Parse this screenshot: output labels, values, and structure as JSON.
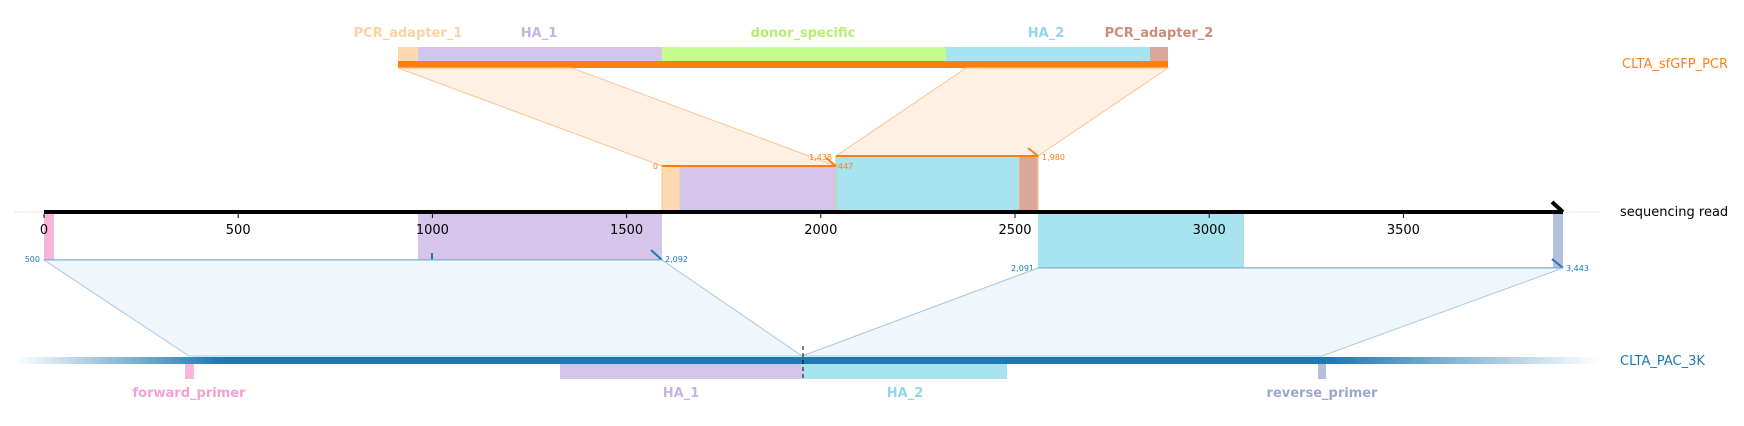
{
  "top_feature_labels": {
    "pcr_adapter_1": "PCR_adapter_1",
    "ha_1": "HA_1",
    "donor_specific": "donor_specific",
    "ha_2": "HA_2",
    "pcr_adapter_2": "PCR_adapter_2"
  },
  "bottom_feature_labels": {
    "forward_primer": "forward_primer",
    "ha_1": "HA_1",
    "ha_2": "HA_2",
    "reverse_primer": "reverse_primer"
  },
  "track_labels": {
    "donor": "CLTA_sfGFP_PCR",
    "read": "sequencing read",
    "target": "CLTA_PAC_3K"
  },
  "axis_ticks": [
    "0",
    "500",
    "1000",
    "1500",
    "2000",
    "2500",
    "3000",
    "3500"
  ],
  "alignment_labels": {
    "donor_first_start": "0",
    "donor_first_end": "447",
    "donor_second_start": "1,438",
    "donor_second_end": "1,980",
    "target_first_start": "500",
    "target_first_end": "2,092",
    "target_second_start": "2,091",
    "target_second_end": "3,443"
  },
  "colors": {
    "donor": "#ff7f0e",
    "target": "#1f77b4",
    "pcr_adapter_1": "#fdd8b0",
    "ha_1": "#d5c5ea",
    "donor_specific": "#c6fc8b",
    "ha_2": "#a8e4ef",
    "pcr_adapter_2": "#dba79a",
    "forward_primer": "#f9b4da",
    "reverse_primer": "#b4bfdb"
  }
}
